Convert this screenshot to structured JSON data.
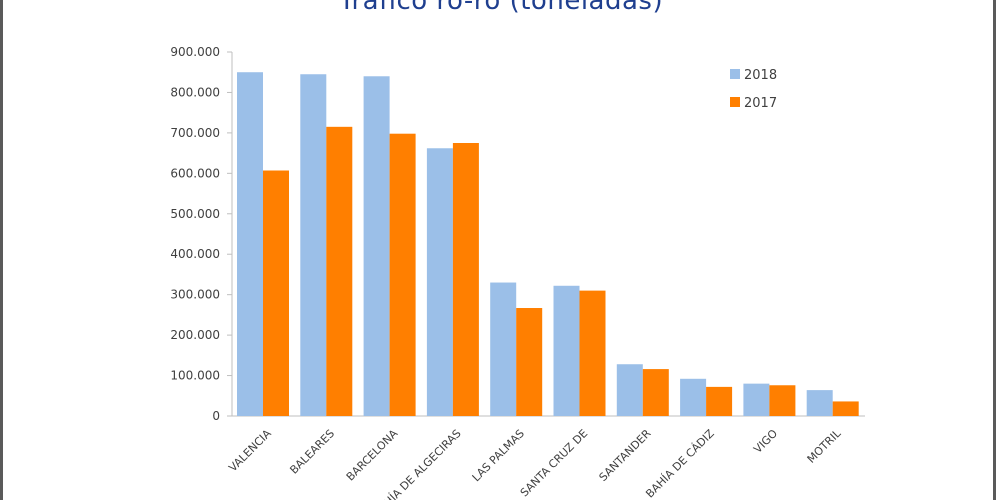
{
  "chart_data": {
    "type": "bar",
    "title": "Tráfico ro-ro (toneladas)",
    "categories": [
      "VALENCIA",
      "BALEARES",
      "BARCELONA",
      "BAHÍA DE ALGECIRAS",
      "LAS PALMAS",
      "SANTA CRUZ DE",
      "SANTANDER",
      "BAHÍA DE CÁDIZ",
      "VIGO",
      "MOTRIL"
    ],
    "series": [
      {
        "name": "2018",
        "color": "#9bbfe8",
        "values": [
          850000,
          845000,
          840000,
          662000,
          330000,
          322000,
          128000,
          92000,
          80000,
          64000
        ]
      },
      {
        "name": "2017",
        "color": "#ff7f00",
        "values": [
          607000,
          715000,
          698000,
          675000,
          267000,
          310000,
          116000,
          72000,
          76000,
          36000
        ]
      }
    ],
    "ylim": [
      0,
      900000
    ],
    "yticks": [
      0,
      100000,
      200000,
      300000,
      400000,
      500000,
      600000,
      700000,
      800000,
      900000
    ],
    "ytick_labels": [
      "0",
      "100.000",
      "200.000",
      "300.000",
      "400.000",
      "500.000",
      "600.000",
      "700.000",
      "800.000",
      "900.000"
    ],
    "grid": false,
    "legend": "top-right",
    "xlabel": "",
    "ylabel": ""
  }
}
